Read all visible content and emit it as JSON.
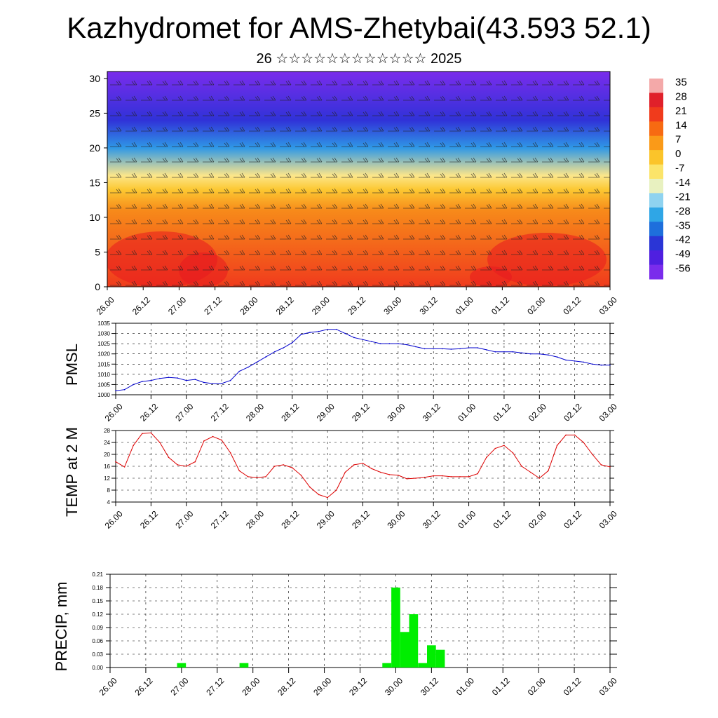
{
  "title": "Kazhydromet for AMS-Zhetybai(43.593 52.1)",
  "subtitle": "26 ☆☆☆☆☆☆☆☆☆☆☆☆ 2025",
  "time_ticks": [
    "26.00",
    "26.12",
    "27.00",
    "27.12",
    "28.00",
    "28.12",
    "29.00",
    "29.12",
    "30.00",
    "30.12",
    "01.00",
    "01.12",
    "02.00",
    "02.12",
    "03.00"
  ],
  "chart_data": [
    {
      "type": "heatmap",
      "name": "cross-section",
      "x": [
        "26.00",
        "26.12",
        "27.00",
        "27.12",
        "28.00",
        "28.12",
        "29.00",
        "29.12",
        "30.00",
        "30.12",
        "01.00",
        "01.12",
        "02.00",
        "02.12",
        "03.00"
      ],
      "ylim": [
        0,
        31
      ],
      "yticks": [
        0,
        5,
        10,
        15,
        20,
        25,
        30
      ],
      "colorbar": {
        "labels": [
          "35",
          "28",
          "21",
          "14",
          "7",
          "0",
          "-7",
          "-14",
          "-21",
          "-28",
          "-35",
          "-42",
          "-49",
          "-56"
        ],
        "colors": [
          "#f4a9a9",
          "#e0202a",
          "#f03b1c",
          "#f76a12",
          "#fa9a18",
          "#fbc42a",
          "#fbe46a",
          "#e8f1c0",
          "#8fd3f0",
          "#2fa6e6",
          "#1e6fdc",
          "#2a35d6",
          "#4f1fe0",
          "#7a2cec"
        ]
      },
      "surface_band_levels": [
        0,
        11,
        14,
        16,
        20,
        24,
        31
      ],
      "surface_band_colors": [
        "#f03b1c",
        "#f78a1a",
        "#fcc832",
        "#fce68a",
        "#2f98e6",
        "#3032d8",
        "#7a2cec"
      ]
    },
    {
      "type": "line",
      "name": "PMSL",
      "ylabel": "PMSL",
      "ylim": [
        1000,
        1035
      ],
      "yticks": [
        1000,
        1005,
        1010,
        1015,
        1020,
        1025,
        1030,
        1035
      ],
      "color": "#0000cc",
      "x_hours": [
        0,
        3,
        6,
        9,
        12,
        15,
        18,
        21,
        24,
        27,
        30,
        33,
        36,
        39,
        42,
        45,
        48,
        51,
        54,
        57,
        60,
        63,
        66,
        69,
        72,
        75,
        78,
        81,
        84,
        87,
        90,
        93,
        96,
        99,
        102,
        105,
        108,
        111,
        114,
        117,
        120,
        123,
        126,
        129,
        132,
        135,
        138,
        141,
        144,
        147,
        150,
        153,
        156,
        159,
        162,
        165,
        168
      ],
      "values": [
        1002,
        1002.5,
        1005,
        1006.5,
        1007,
        1008,
        1008.5,
        1008.2,
        1007,
        1007.5,
        1006,
        1005.5,
        1005.5,
        1007,
        1011.5,
        1013.5,
        1016,
        1018.5,
        1021,
        1023,
        1025.5,
        1029.5,
        1030.5,
        1031,
        1032,
        1032,
        1030,
        1028,
        1027,
        1026,
        1025,
        1025,
        1025,
        1024.5,
        1023.5,
        1022.5,
        1022.5,
        1022.5,
        1022.3,
        1022.5,
        1023,
        1023,
        1022,
        1021,
        1021,
        1021,
        1020.5,
        1020,
        1020,
        1019.5,
        1018.5,
        1017,
        1016.5,
        1016,
        1015,
        1014.5,
        1014.5
      ]
    },
    {
      "type": "line",
      "name": "TEMP",
      "ylabel": "TEMP at 2 M",
      "ylim": [
        4,
        28
      ],
      "yticks": [
        4,
        8,
        12,
        16,
        20,
        24,
        28
      ],
      "color": "#dd0000",
      "x_hours": [
        0,
        3,
        6,
        9,
        12,
        15,
        18,
        21,
        24,
        27,
        30,
        33,
        36,
        39,
        42,
        45,
        48,
        51,
        54,
        57,
        60,
        63,
        66,
        69,
        72,
        75,
        78,
        81,
        84,
        87,
        90,
        93,
        96,
        99,
        102,
        105,
        108,
        111,
        114,
        117,
        120,
        123,
        126,
        129,
        132,
        135,
        138,
        141,
        144,
        147,
        150,
        153,
        156,
        159,
        162,
        165,
        168
      ],
      "values": [
        17.5,
        15.8,
        23,
        27,
        27.2,
        24,
        19,
        16.5,
        16,
        17.5,
        24.5,
        26,
        24.8,
        20.5,
        14.5,
        12.5,
        12.2,
        12.5,
        16,
        16.5,
        15.5,
        13,
        9,
        6.5,
        5.5,
        8,
        14,
        16.5,
        17,
        15.2,
        14,
        13.2,
        13,
        11.8,
        12,
        12.3,
        12.8,
        12.8,
        12.5,
        12.5,
        12.5,
        13.5,
        19,
        22,
        23,
        20.5,
        16,
        14,
        12,
        14.5,
        23,
        26.5,
        26.5,
        24,
        20,
        16.5,
        15.8
      ]
    },
    {
      "type": "bar",
      "name": "PRECIP",
      "ylabel": "PRECIP, mm",
      "ylim": [
        0,
        0.21
      ],
      "yticks": [
        "0.00",
        "0.03",
        "0.06",
        "0.09",
        "0.12",
        "0.15",
        "0.18",
        "0.21"
      ],
      "color": "#00ee00",
      "bar_width_hours": 3,
      "x_hours": [
        24,
        45,
        93,
        96,
        99,
        102,
        105,
        108,
        111,
        114
      ],
      "values": [
        0.01,
        0.01,
        0.01,
        0.18,
        0.08,
        0.12,
        0.01,
        0.05,
        0.04,
        0.0
      ]
    }
  ]
}
